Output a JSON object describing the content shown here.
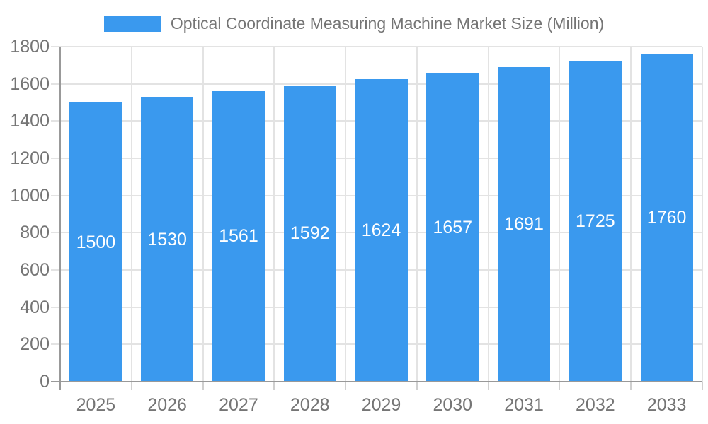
{
  "legend": {
    "label": "Optical Coordinate Measuring Machine Market Size (Million)"
  },
  "chart_data": {
    "type": "bar",
    "title": "Optical Coordinate Measuring Machine Market Size (Million)",
    "categories": [
      "2025",
      "2026",
      "2027",
      "2028",
      "2029",
      "2030",
      "2031",
      "2032",
      "2033"
    ],
    "values": [
      1500,
      1530,
      1561,
      1592,
      1624,
      1657,
      1691,
      1725,
      1760
    ],
    "xlabel": "",
    "ylabel": "",
    "ylim": [
      0,
      1800
    ],
    "yticks": [
      0,
      200,
      400,
      600,
      800,
      1000,
      1200,
      1400,
      1600,
      1800
    ],
    "grid": true,
    "legend_position": "top-center",
    "bar_label_position": "middle-of-bar",
    "colors": {
      "bar": "#3A99EE",
      "grid": "#E3E3E3",
      "axis": "#999999",
      "boundary_tick": "#D0D0D0",
      "text": "#757575",
      "bar_label": "#FFFFFF",
      "background": "#FFFFFF"
    }
  }
}
